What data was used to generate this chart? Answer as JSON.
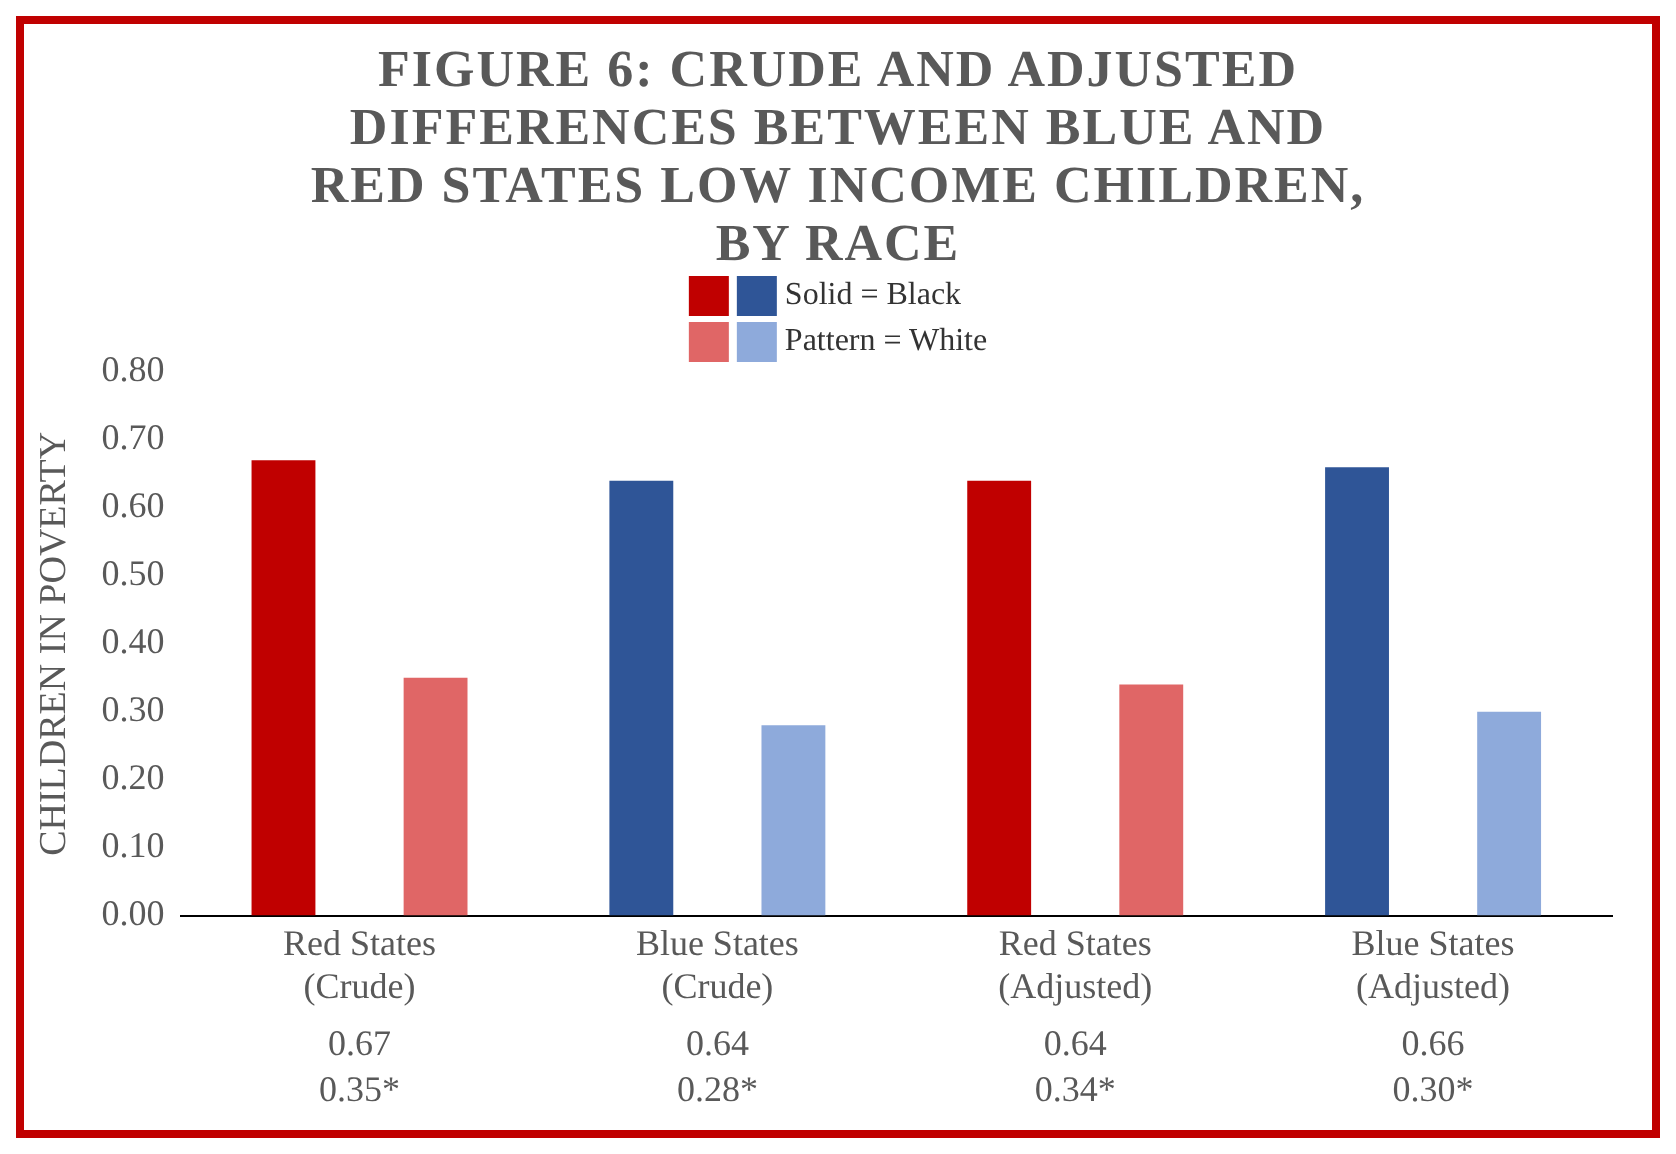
{
  "chart_data": {
    "type": "bar",
    "title": "FIGURE 6: CRUDE AND ADJUSTED DIFFERENCES BETWEEN BLUE AND RED STATES LOW INCOME CHILDREN, BY RACE",
    "ylabel": "CHILDREN IN POVERTY",
    "categories": [
      "Red States (Crude)",
      "Blue States (Crude)",
      "Red States (Adjusted)",
      "Blue States (Adjusted)"
    ],
    "series": [
      {
        "name": "Solid = Black",
        "colors": [
          "#c00000",
          "#2f5597",
          "#c00000",
          "#2f5597"
        ],
        "values": [
          0.67,
          0.64,
          0.64,
          0.66
        ],
        "value_labels": [
          "0.67",
          "0.64",
          "0.64",
          "0.66"
        ]
      },
      {
        "name": "Pattern = White",
        "colors": [
          "#e06666",
          "#8eaadb",
          "#e06666",
          "#8eaadb"
        ],
        "values": [
          0.35,
          0.28,
          0.34,
          0.3
        ],
        "value_labels": [
          "0.35*",
          "0.28*",
          "0.34*",
          "0.30*"
        ]
      }
    ],
    "ylim": [
      0,
      0.8
    ],
    "yticks": [
      {
        "value": 0,
        "label": "0.00"
      },
      {
        "value": 0.1,
        "label": "0.10"
      },
      {
        "value": 0.2,
        "label": "0.20"
      },
      {
        "value": 0.3,
        "label": "0.30"
      },
      {
        "value": 0.4,
        "label": "0.40"
      },
      {
        "value": 0.5,
        "label": "0.50"
      },
      {
        "value": 0.6,
        "label": "0.60"
      },
      {
        "value": 0.7,
        "label": "0.70"
      },
      {
        "value": 0.8,
        "label": "0.80"
      }
    ],
    "grid": false,
    "legend": "top"
  }
}
